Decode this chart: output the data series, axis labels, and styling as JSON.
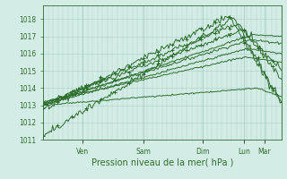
{
  "xlabel": "Pression niveau de la mer( hPa )",
  "bg_color": "#d4ece6",
  "grid_color": "#aacfc8",
  "line_color": "#2d6e2d",
  "ylim": [
    1011.0,
    1018.8
  ],
  "yticks": [
    1011,
    1012,
    1013,
    1014,
    1015,
    1016,
    1017,
    1018
  ],
  "day_positions": [
    0.165,
    0.42,
    0.67,
    0.845,
    0.93
  ],
  "day_labels": [
    "Ven",
    "Sam",
    "Dim",
    "Lun",
    "Mar"
  ],
  "xlabel_fontsize": 7,
  "tick_fontsize": 5.5
}
